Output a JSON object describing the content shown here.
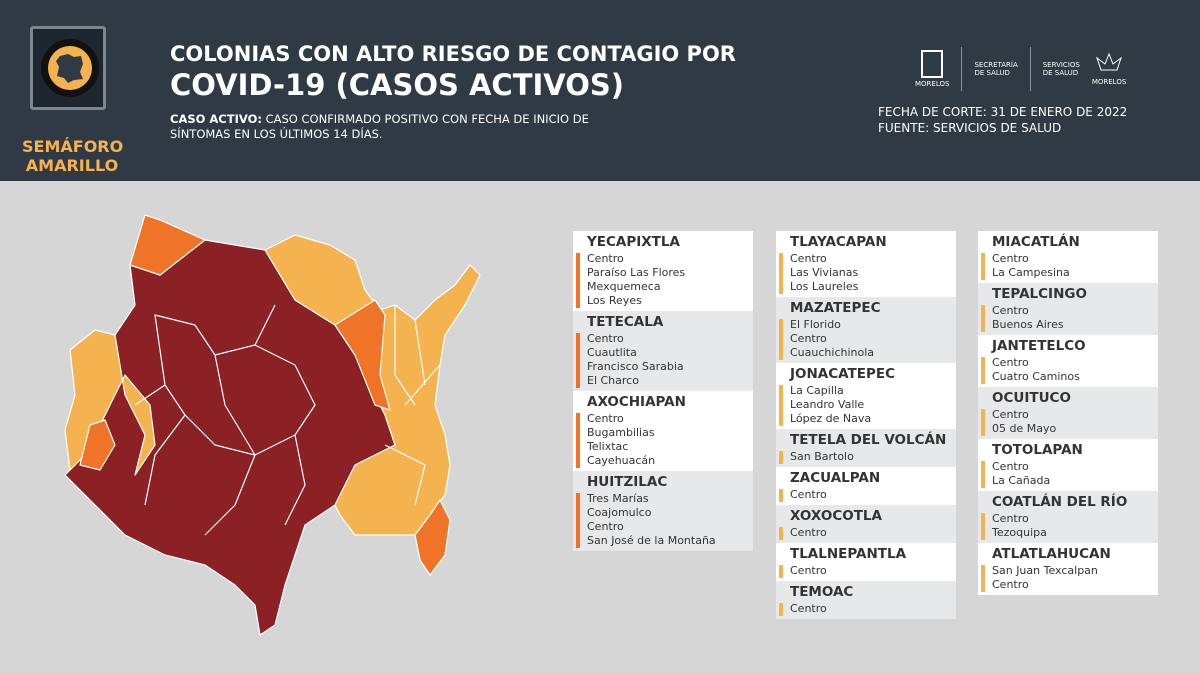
{
  "header": {
    "semaforo": [
      "SEMÁFORO",
      "AMARILLO"
    ],
    "title_line1": "COLONIAS CON ALTO RIESGO DE CONTAGIO POR",
    "title_line2": "COVID-19 (CASOS ACTIVOS)",
    "desc_label": "CASO ACTIVO:",
    "desc_text": " CASO CONFIRMADO POSITIVO CON FECHA DE INICIO DE SÍNTOMAS EN LOS ÚLTIMOS 14 DÍAS.",
    "logos": {
      "morelos": "MORELOS",
      "secretaria": [
        "SECRETARÍA",
        "DE SALUD"
      ],
      "servicios": [
        "SERVICIOS",
        "DE SALUD"
      ],
      "morelos2": "MORELOS"
    },
    "fecha": "FECHA DE CORTE: 31 DE ENERO DE 2022",
    "fuente": "FUENTE: SERVICIOS DE SALUD"
  },
  "colors": {
    "header_bg": "#2f3a45",
    "dark_red": "#8b2124",
    "light_orange": "#f5b350",
    "orange": "#ef7427"
  },
  "columns": [
    {
      "bar_color": "#ef7427",
      "entries": [
        {
          "name": "YECAPIXTLA",
          "items": [
            "Centro",
            "Paraíso Las Flores",
            "Mexquemeca",
            "Los Reyes"
          ]
        },
        {
          "name": "TETECALA",
          "items": [
            "Centro",
            "Cuautlita",
            "Francisco Sarabia",
            "El Charco"
          ]
        },
        {
          "name": "AXOCHIAPAN",
          "items": [
            "Centro",
            "Bugambilias",
            "Telixtac",
            "Cayehuacán"
          ]
        },
        {
          "name": "HUITZILAC",
          "items": [
            "Tres Marías",
            "Coajomulco",
            "Centro",
            "San José de la Montaña"
          ]
        }
      ]
    },
    {
      "bar_color": "#f5b350",
      "entries": [
        {
          "name": "TLAYACAPAN",
          "items": [
            "Centro",
            "Las Vivianas",
            "Los Laureles"
          ]
        },
        {
          "name": "MAZATEPEC",
          "items": [
            "El Florido",
            "Centro",
            "Cuauchichinola"
          ]
        },
        {
          "name": "JONACATEPEC",
          "items": [
            "La Capilla",
            "Leandro Valle",
            "López de Nava"
          ]
        },
        {
          "name": "TETELA DEL VOLCÁN",
          "items": [
            "San Bartolo"
          ]
        },
        {
          "name": "ZACUALPAN",
          "items": [
            "Centro"
          ]
        },
        {
          "name": "XOXOCOTLA",
          "items": [
            "Centro"
          ]
        },
        {
          "name": "TLALNEPANTLA",
          "items": [
            "Centro"
          ]
        },
        {
          "name": "TEMOAC",
          "items": [
            "Centro"
          ]
        }
      ]
    },
    {
      "bar_color": "#f5b350",
      "entries": [
        {
          "name": "MIACATLÁN",
          "items": [
            "Centro",
            "La Campesina"
          ]
        },
        {
          "name": "TEPALCINGO",
          "items": [
            "Centro",
            "Buenos Aires"
          ]
        },
        {
          "name": "JANTETELCO",
          "items": [
            "Centro",
            "Cuatro Caminos"
          ]
        },
        {
          "name": "OCUITUCO",
          "items": [
            "Centro",
            "05 de Mayo"
          ]
        },
        {
          "name": "TOTOLAPAN",
          "items": [
            "Centro",
            "La Cañada"
          ]
        },
        {
          "name": "COATLÁN DEL RÍO",
          "items": [
            "Centro",
            "Tezoquipa"
          ]
        },
        {
          "name": "ATLATLAHUCAN",
          "items": [
            "San Juan Texcalpan",
            "Centro"
          ]
        }
      ]
    }
  ]
}
